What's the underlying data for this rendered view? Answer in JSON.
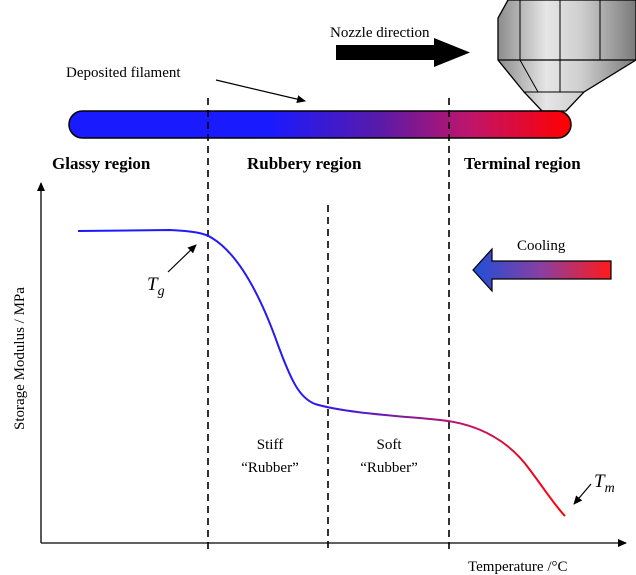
{
  "labels": {
    "nozzle_direction": "Nozzle direction",
    "deposited_filament": "Deposited filament",
    "regions": {
      "glassy": "Glassy region",
      "rubbery": "Rubbery region",
      "terminal": "Terminal region"
    },
    "cooling": "Cooling",
    "y_axis": "Storage Modulus / MPa",
    "x_axis": "Temperature /°C",
    "tg": {
      "base": "T",
      "sub": "g"
    },
    "tm": {
      "base": "T",
      "sub": "m"
    },
    "stiff_rubber": {
      "line1": "Stiff",
      "line2": "“Rubber”"
    },
    "soft_rubber": {
      "line1": "Soft",
      "line2": "“Rubber”"
    }
  },
  "colors": {
    "cold": "#1a1aff",
    "hot": "#ff0000",
    "mid": "#7a1aa0",
    "ink": "#000000",
    "nozzle_light": "#d9d9d9",
    "nozzle_dark": "#8c8c8c"
  },
  "icons": {
    "nozzle": "print-nozzle-icon",
    "direction_arrow": "arrow-right-icon",
    "cooling_arrow": "arrow-left-icon"
  }
}
